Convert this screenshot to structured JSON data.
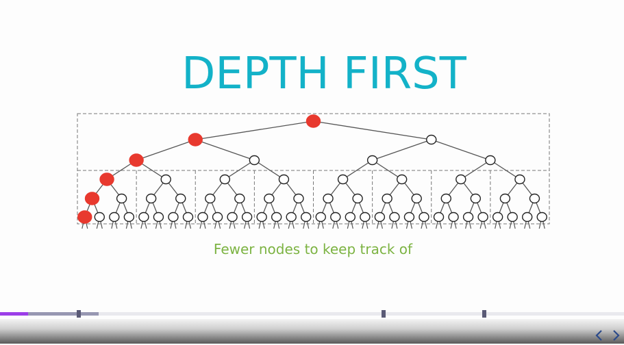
{
  "slide": {
    "title": "DEPTH FIRST",
    "caption": "Fewer nodes to keep track of"
  },
  "diagram": {
    "type": "binary-tree",
    "depth_levels_shown": 6,
    "highlight_color": "#e8392e",
    "node_fill": "#ffffff",
    "node_stroke": "#222222",
    "edge_color": "#555555",
    "box_stroke": "#777777",
    "highlighted_path": [
      "root",
      "left",
      "left",
      "left",
      "left",
      "left"
    ]
  },
  "player": {
    "progress_fraction": 0.045,
    "buffered_fraction": 0.158,
    "chapter_markers_count": 3,
    "played_color": "#9c3ee8",
    "buffered_color": "#9797b2",
    "prev_icon": "chevron-left-icon",
    "next_icon": "chevron-right-icon"
  }
}
